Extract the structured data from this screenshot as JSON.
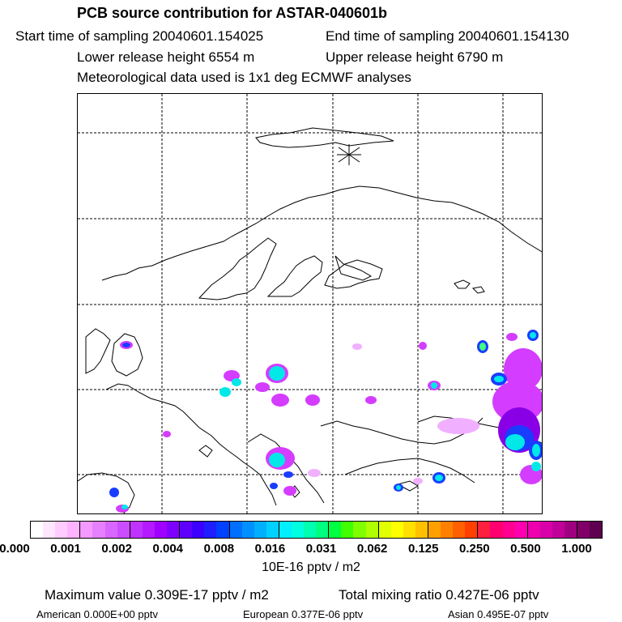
{
  "header": {
    "title": "PCB source contribution for ASTAR-040601b",
    "start_time": "Start time of sampling 20040601.154025",
    "end_time": "End time of sampling 20040601.154130",
    "lower_height": "Lower release height 6554 m",
    "upper_height": "Upper release height 6790 m",
    "met_data": "Meteorological data used is 1x1 deg ECMWF analyses"
  },
  "colorbar": {
    "tick_labels": [
      "0.000",
      "0.001",
      "0.002",
      "0.004",
      "0.008",
      "0.016",
      "0.031",
      "0.062",
      "0.125",
      "0.250",
      "0.500",
      "1.000"
    ],
    "units": "10E-16 pptv / m2",
    "colors": [
      "#ffffff",
      "#ffe6ff",
      "#ffccff",
      "#ffb3ff",
      "#f399ff",
      "#e680ff",
      "#d966ff",
      "#cc4dff",
      "#bf33ff",
      "#b31aff",
      "#a000ff",
      "#8000ff",
      "#5e00ff",
      "#3c00ff",
      "#1e1eff",
      "#0040ff",
      "#0070ff",
      "#0090ff",
      "#00b0ff",
      "#00d0ff",
      "#00f0ff",
      "#00ffe0",
      "#00ffb0",
      "#00ff80",
      "#00ff40",
      "#40ff00",
      "#80ff00",
      "#b0ff00",
      "#e0ff00",
      "#ffff00",
      "#ffe000",
      "#ffc000",
      "#ffa000",
      "#ff8000",
      "#ff6000",
      "#ff4000",
      "#ff2040",
      "#ff0070",
      "#ff0090",
      "#ff00b0",
      "#ee00b0",
      "#d800a8",
      "#c00098",
      "#a00080",
      "#800068",
      "#600050"
    ]
  },
  "footer": {
    "max_value": "Maximum value  0.309E-17 pptv / m2",
    "total_mixing": "Total mixing ratio  0.427E-06 pptv",
    "american": "American  0.000E+00 pptv",
    "european": "European  0.377E-06 pptv",
    "asian": "Asian  0.495E-07 pptv"
  },
  "map": {
    "line_color": "#000000",
    "plume_colors": {
      "light": "#f0b0ff",
      "magenta": "#d43cff",
      "purple": "#8a00e6",
      "blue": "#1a3cff",
      "cyan": "#00e8e8",
      "green": "#40ff80"
    }
  }
}
